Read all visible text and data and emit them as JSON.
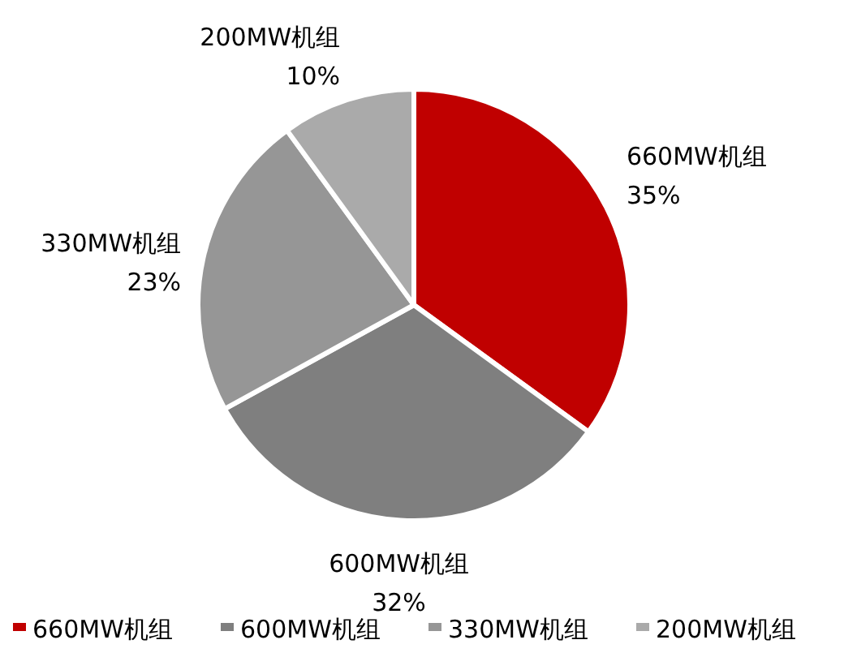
{
  "chart_data": {
    "type": "pie",
    "categories": [
      "660MW机组",
      "600MW机组",
      "330MW机组",
      "200MW机组"
    ],
    "values": [
      35,
      32,
      23,
      10
    ],
    "colors": [
      "#c00000",
      "#7f7f7f",
      "#969696",
      "#aaaaaa"
    ],
    "value_labels": [
      "35%",
      "32%",
      "23%",
      "10%"
    ],
    "legend": "bottom"
  }
}
